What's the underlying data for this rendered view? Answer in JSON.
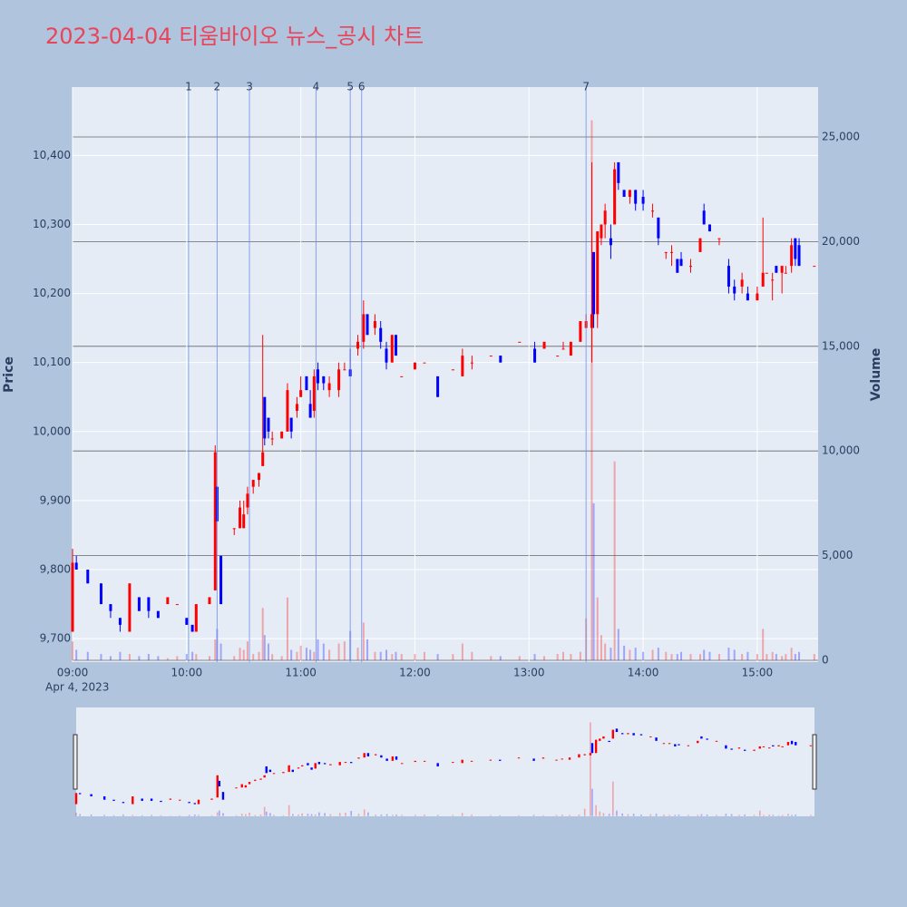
{
  "chart_data": {
    "type": "candlestick",
    "title": "2023-04-04 티움바이오 뉴스_공시 차트",
    "y_label": "Price",
    "y2_label": "Volume",
    "date_label": "Apr 4, 2023",
    "up_color": "#ff0000",
    "down_color": "#0000ff",
    "x": [
      "09:00",
      "09:02",
      "09:08",
      "09:15",
      "09:20",
      "09:25",
      "09:30",
      "09:35",
      "09:40",
      "09:45",
      "09:50",
      "09:55",
      "10:00",
      "10:03",
      "10:05",
      "10:12",
      "10:15",
      "10:16",
      "10:18",
      "10:25",
      "10:28",
      "10:30",
      "10:32",
      "10:35",
      "10:38",
      "10:40",
      "10:41",
      "10:43",
      "10:45",
      "10:50",
      "10:53",
      "10:55",
      "10:58",
      "11:00",
      "11:03",
      "11:05",
      "11:07",
      "11:09",
      "11:12",
      "11:15",
      "11:20",
      "11:23",
      "11:26",
      "11:30",
      "11:33",
      "11:35",
      "11:39",
      "11:42",
      "11:45",
      "11:48",
      "11:50",
      "11:53",
      "12:00",
      "12:05",
      "12:12",
      "12:20",
      "12:25",
      "12:30",
      "12:40",
      "12:45",
      "12:55",
      "13:03",
      "13:08",
      "13:15",
      "13:18",
      "13:22",
      "13:27",
      "13:30",
      "13:33",
      "13:34",
      "13:36",
      "13:38",
      "13:40",
      "13:43",
      "13:45",
      "13:47",
      "13:50",
      "13:53",
      "13:56",
      "14:00",
      "14:05",
      "14:08",
      "14:12",
      "14:15",
      "14:18",
      "14:20",
      "14:25",
      "14:30",
      "14:32",
      "14:35",
      "14:40",
      "14:45",
      "14:48",
      "14:52",
      "14:55",
      "15:00",
      "15:03",
      "15:05",
      "15:08",
      "15:10",
      "15:13",
      "15:15",
      "15:18",
      "15:20",
      "15:22",
      "15:30"
    ],
    "open": [
      9710,
      9810,
      9800,
      9780,
      9750,
      9730,
      9710,
      9760,
      9760,
      9740,
      9750,
      9750,
      9730,
      9720,
      9710,
      9750,
      9770,
      9920,
      9820,
      9860,
      9860,
      9860,
      9890,
      9920,
      9930,
      9950,
      10050,
      10020,
      9990,
      9990,
      10000,
      10020,
      10030,
      10050,
      10080,
      10040,
      10030,
      10090,
      10080,
      10060,
      10060,
      10090,
      10090,
      10120,
      10130,
      10170,
      10150,
      10150,
      10120,
      10100,
      10140,
      10080,
      10090,
      10100,
      10080,
      10090,
      10080,
      10100,
      10110,
      10110,
      10130,
      10120,
      10120,
      10110,
      10120,
      10110,
      10130,
      10150,
      10150,
      10260,
      10170,
      10280,
      10300,
      10280,
      10300,
      10390,
      10350,
      10340,
      10350,
      10340,
      10320,
      10310,
      10260,
      10260,
      10250,
      10250,
      10240,
      10260,
      10320,
      10300,
      10280,
      10240,
      10210,
      10210,
      10200,
      10190,
      10210,
      10230,
      10220,
      10240,
      10230,
      10230,
      10240,
      10280,
      10270,
      10240
    ],
    "high": [
      9830,
      9820,
      9800,
      9780,
      9750,
      9730,
      9780,
      9760,
      9760,
      9740,
      9760,
      9750,
      9730,
      9720,
      9750,
      9760,
      9980,
      9920,
      9820,
      9860,
      9900,
      9900,
      9920,
      9930,
      9940,
      10140,
      10050,
      10020,
      10000,
      10000,
      10070,
      10020,
      10050,
      10080,
      10080,
      10060,
      10090,
      10100,
      10080,
      10080,
      10100,
      10100,
      10120,
      10140,
      10190,
      10170,
      10170,
      10160,
      10130,
      10140,
      10140,
      10080,
      10100,
      10100,
      10080,
      10090,
      10120,
      10110,
      10110,
      10110,
      10130,
      10130,
      10130,
      10110,
      10130,
      10130,
      10160,
      10170,
      10390,
      10260,
      10290,
      10300,
      10330,
      10300,
      10390,
      10390,
      10350,
      10350,
      10350,
      10350,
      10330,
      10310,
      10260,
      10270,
      10250,
      10260,
      10250,
      10280,
      10330,
      10300,
      10280,
      10250,
      10220,
      10230,
      10210,
      10210,
      10310,
      10230,
      10230,
      10240,
      10240,
      10240,
      10280,
      10280,
      10280,
      10240
    ],
    "low": [
      9710,
      9800,
      9780,
      9750,
      9730,
      9710,
      9710,
      9740,
      9730,
      9730,
      9750,
      9750,
      9720,
      9710,
      9710,
      9750,
      9770,
      9870,
      9750,
      9850,
      9860,
      9860,
      9880,
      9910,
      9920,
      9950,
      9980,
      9990,
      9980,
      9990,
      10000,
      9990,
      10020,
      10050,
      10060,
      10020,
      10020,
      10060,
      10060,
      10050,
      10050,
      10090,
      10080,
      10110,
      10120,
      10140,
      10140,
      10120,
      10090,
      10100,
      10110,
      10080,
      10090,
      10100,
      10050,
      10090,
      10080,
      10090,
      10110,
      10100,
      10130,
      10100,
      10120,
      10110,
      10120,
      10110,
      10130,
      10150,
      10100,
      10150,
      10150,
      10270,
      10280,
      10250,
      10300,
      10350,
      10340,
      10330,
      10320,
      10320,
      10310,
      10270,
      10250,
      10240,
      10230,
      10240,
      10230,
      10260,
      10300,
      10290,
      10270,
      10200,
      10190,
      10200,
      10190,
      10190,
      10210,
      10230,
      10190,
      10230,
      10200,
      10230,
      10230,
      10240,
      10240,
      10240
    ],
    "close": [
      9810,
      9800,
      9780,
      9750,
      9740,
      9720,
      9780,
      9740,
      9740,
      9730,
      9760,
      9750,
      9720,
      9710,
      9750,
      9760,
      9970,
      9870,
      9750,
      9860,
      9890,
      9880,
      9910,
      9930,
      9940,
      9970,
      9990,
      10000,
      9990,
      10000,
      10060,
      10000,
      10040,
      10060,
      10060,
      10020,
      10080,
      10070,
      10070,
      10070,
      10090,
      10090,
      10080,
      10130,
      10170,
      10140,
      10160,
      10130,
      10100,
      10140,
      10110,
      10080,
      10100,
      10100,
      10050,
      10090,
      10110,
      10100,
      10110,
      10100,
      10130,
      10100,
      10130,
      10110,
      10120,
      10130,
      10160,
      10160,
      10170,
      10170,
      10290,
      10300,
      10320,
      10270,
      10380,
      10360,
      10340,
      10350,
      10330,
      10330,
      10320,
      10280,
      10260,
      10260,
      10230,
      10240,
      10240,
      10280,
      10300,
      10290,
      10280,
      10210,
      10200,
      10220,
      10190,
      10200,
      10230,
      10230,
      10220,
      10230,
      10240,
      10230,
      10270,
      10250,
      10240,
      10240
    ],
    "volume": [
      900,
      500,
      400,
      300,
      200,
      400,
      300,
      200,
      300,
      200,
      100,
      200,
      300,
      400,
      300,
      200,
      1000,
      1500,
      800,
      200,
      600,
      500,
      900,
      300,
      400,
      2500,
      1200,
      800,
      300,
      200,
      3000,
      500,
      400,
      700,
      600,
      500,
      400,
      1000,
      800,
      500,
      800,
      900,
      1400,
      600,
      1800,
      1000,
      400,
      400,
      500,
      300,
      400,
      300,
      300,
      400,
      300,
      300,
      800,
      400,
      200,
      200,
      200,
      300,
      200,
      300,
      400,
      300,
      400,
      2000,
      25800,
      7500,
      3000,
      1200,
      800,
      600,
      9500,
      1500,
      700,
      500,
      600,
      400,
      500,
      600,
      400,
      300,
      300,
      400,
      300,
      300,
      500,
      400,
      300,
      600,
      500,
      300,
      400,
      300,
      1500,
      300,
      400,
      300,
      200,
      300,
      600,
      300,
      400,
      300
    ],
    "xlim": [
      "09:00",
      "15:32"
    ],
    "xticks": [
      "09:00",
      "10:00",
      "11:00",
      "12:00",
      "13:00",
      "14:00",
      "15:00"
    ],
    "ylim": [
      9666,
      10499
    ],
    "yticks": [
      {
        "value": 9700,
        "label": "9,700"
      },
      {
        "value": 9800,
        "label": "9,800"
      },
      {
        "value": 9900,
        "label": "9,900"
      },
      {
        "value": 10000,
        "label": "10,000"
      },
      {
        "value": 10100,
        "label": "10,100"
      },
      {
        "value": 10200,
        "label": "10,200"
      },
      {
        "value": 10300,
        "label": "10,300"
      },
      {
        "value": 10400,
        "label": "10,400"
      }
    ],
    "y2lim": [
      -87,
      27383
    ],
    "y2ticks": [
      0,
      {
        "value": 5000,
        "label": "5,000"
      },
      {
        "value": 10000,
        "label": "10,000"
      },
      {
        "value": 15000,
        "label": "15,000"
      },
      {
        "value": 20000,
        "label": "20,000"
      },
      {
        "value": 25000,
        "label": "25,000"
      }
    ],
    "news": [
      {
        "label": "1",
        "x": "10:01"
      },
      {
        "label": "2",
        "x": "10:16"
      },
      {
        "label": "3",
        "x": "10:33"
      },
      {
        "label": "4",
        "x": "11:08"
      },
      {
        "label": "5",
        "x": "11:26"
      },
      {
        "label": "6",
        "x": "11:32"
      },
      {
        "label": "7",
        "x": "13:30"
      }
    ],
    "news_color": "#6f8fe8",
    "grid": true,
    "range_slider": true
  }
}
